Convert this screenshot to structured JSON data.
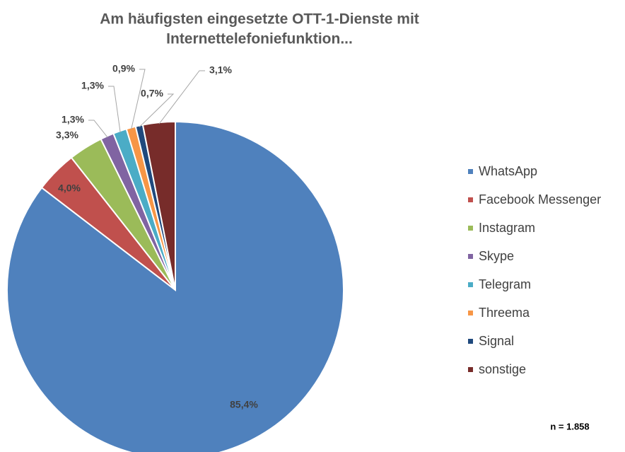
{
  "chart_data": {
    "type": "pie",
    "title": [
      "Am häufigsten eingesetzte OTT-1-Dienste mit",
      "Internettelefoniefunktion..."
    ],
    "categories": [
      "WhatsApp",
      "Facebook Messenger",
      "Instagram",
      "Skype",
      "Telegram",
      "Threema",
      "Signal",
      "sonstige"
    ],
    "values": [
      85.4,
      4.0,
      3.3,
      1.3,
      1.3,
      0.9,
      0.7,
      3.1
    ],
    "value_labels": [
      "85,4%",
      "4,0%",
      "3,3%",
      "1,3%",
      "1,3%",
      "0,9%",
      "0,7%",
      "3,1%"
    ],
    "colors": [
      "#4f81bd",
      "#c0504d",
      "#9bbb59",
      "#8064a2",
      "#4bacc6",
      "#f79646",
      "#1f497d",
      "#772c2a"
    ],
    "legend": "right",
    "note": "n = 1.858"
  }
}
